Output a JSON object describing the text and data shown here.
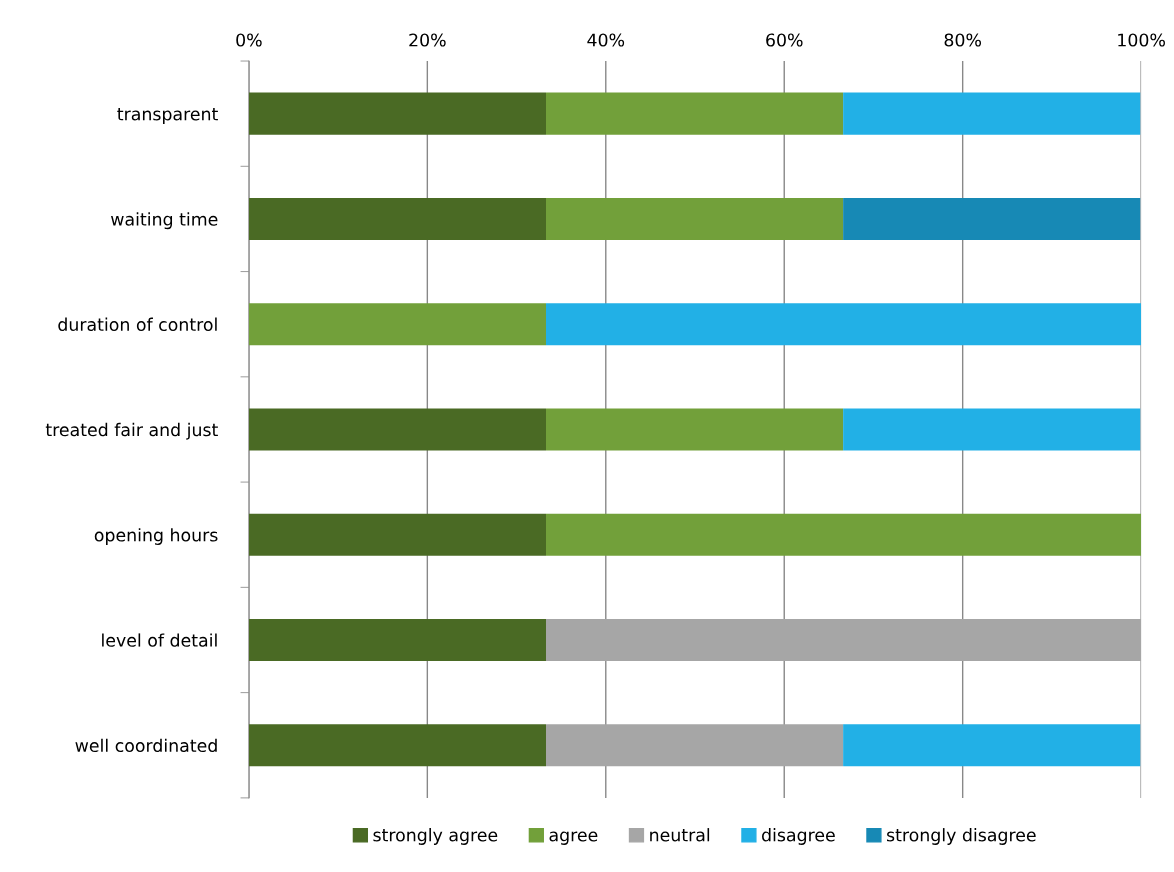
{
  "chart_data": {
    "type": "bar",
    "orientation": "horizontal",
    "stacked": true,
    "categories": [
      "transparent",
      "waiting time",
      "duration of control",
      "treated fair and just",
      "opening hours",
      "level of detail",
      "well coordinated"
    ],
    "series": [
      {
        "name": "strongly agree",
        "color": "#4a6a24",
        "values": [
          33.3,
          33.3,
          null,
          33.3,
          33.3,
          33.3,
          33.3
        ]
      },
      {
        "name": "agree",
        "color": "#72a03a",
        "values": [
          33.3,
          33.3,
          33.3,
          33.3,
          66.7,
          null,
          null
        ]
      },
      {
        "name": "neutral",
        "color": "#a6a6a6",
        "values": [
          null,
          null,
          null,
          null,
          null,
          66.7,
          33.3
        ]
      },
      {
        "name": "disagree",
        "color": "#22b0e6",
        "values": [
          33.3,
          null,
          66.7,
          33.3,
          null,
          null,
          33.3
        ]
      },
      {
        "name": "strongly disagree",
        "color": "#1789b5",
        "values": [
          null,
          33.3,
          null,
          null,
          null,
          null,
          null
        ]
      }
    ],
    "xlim": [
      0,
      100
    ],
    "xticks": [
      {
        "value": 0,
        "label": "0%"
      },
      {
        "value": 20,
        "label": "20%"
      },
      {
        "value": 40,
        "label": "40%"
      },
      {
        "value": 60,
        "label": "60%"
      },
      {
        "value": 80,
        "label": "80%"
      },
      {
        "value": 100,
        "label": "100%"
      }
    ],
    "grid": "x",
    "legend": "bottom"
  }
}
